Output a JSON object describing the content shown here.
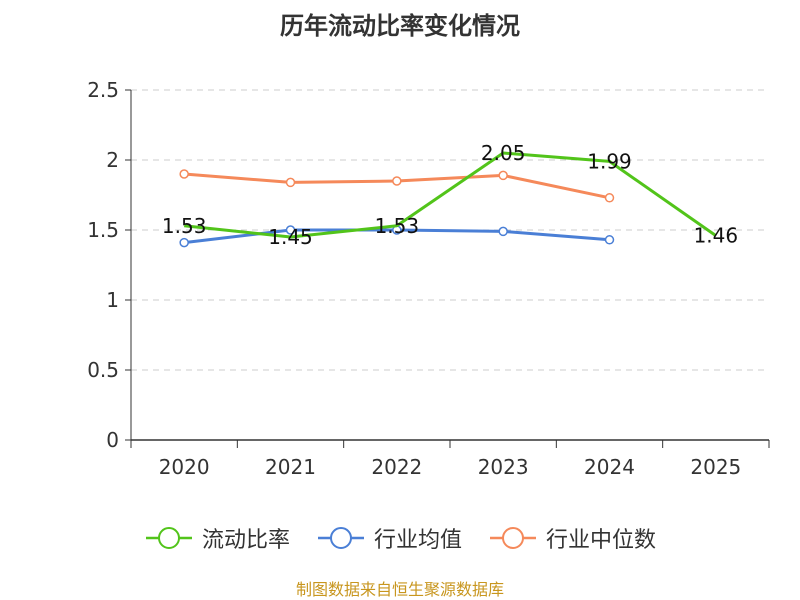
{
  "chart_data": {
    "type": "line",
    "title": "历年流动比率变化情况",
    "categories": [
      "2020",
      "2021",
      "2022",
      "2023",
      "2024",
      "2025"
    ],
    "ylim": [
      0,
      2.5
    ],
    "yticks": [
      "0",
      "0.5",
      "1",
      "1.5",
      "2",
      "2.5"
    ],
    "xlabel": "",
    "ylabel": "",
    "grid": true,
    "legend_position": "bottom",
    "series": [
      {
        "name": "流动比率",
        "color": "#52c41a",
        "show_labels": true,
        "values": [
          1.53,
          1.45,
          1.53,
          2.05,
          1.99,
          1.46
        ],
        "labels": [
          "1.53",
          "1.45",
          "1.53",
          "2.05",
          "1.99",
          "1.46"
        ]
      },
      {
        "name": "行业均值",
        "color": "#4a7fd6",
        "show_labels": false,
        "values": [
          1.41,
          1.5,
          1.5,
          1.49,
          1.43,
          null
        ]
      },
      {
        "name": "行业中位数",
        "color": "#f5895a",
        "show_labels": false,
        "values": [
          1.9,
          1.84,
          1.85,
          1.89,
          1.73,
          null
        ]
      }
    ],
    "source": "制图数据来自恒生聚源数据库"
  }
}
